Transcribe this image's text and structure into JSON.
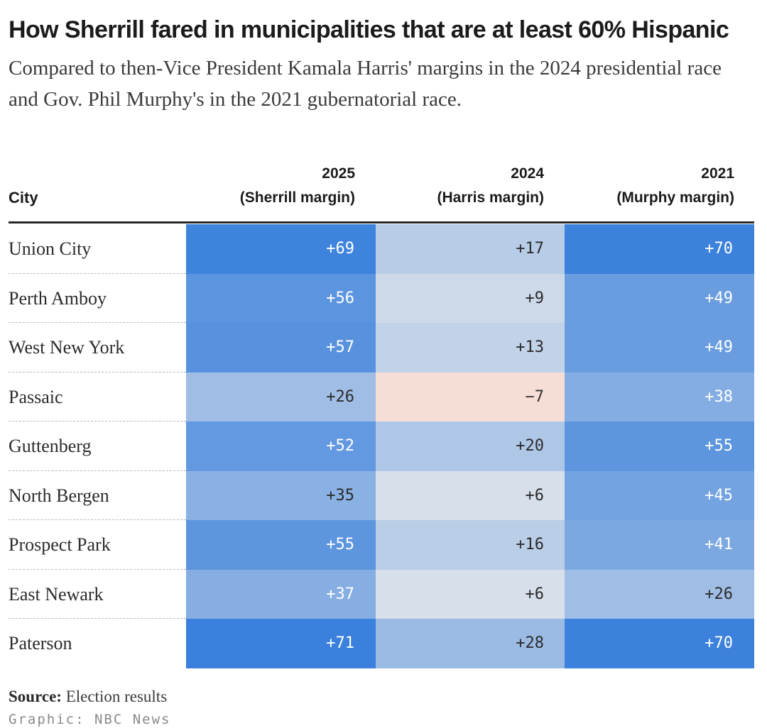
{
  "chart_data": {
    "type": "table",
    "title": "How Sherrill fared in municipalities that are at least 60% Hispanic",
    "subtitle": "Compared to then-Vice President Kamala Harris' margins in the 2024 presidential race and Gov. Phil Murphy's in the 2021 gubernatorial race.",
    "columns": {
      "city": "City",
      "c2025": {
        "year": "2025",
        "label": "(Sherrill margin)"
      },
      "c2024": {
        "year": "2024",
        "label": "(Harris margin)"
      },
      "c2021": {
        "year": "2021",
        "label": "(Murphy margin)"
      }
    },
    "rows": [
      {
        "city": "Union City",
        "v2025": 69,
        "v2024": 17,
        "v2021": 70,
        "t2025": "+69",
        "t2024": "+17",
        "t2021": "+70"
      },
      {
        "city": "Perth Amboy",
        "v2025": 56,
        "v2024": 9,
        "v2021": 49,
        "t2025": "+56",
        "t2024": "+9",
        "t2021": "+49"
      },
      {
        "city": "West New York",
        "v2025": 57,
        "v2024": 13,
        "v2021": 49,
        "t2025": "+57",
        "t2024": "+13",
        "t2021": "+49"
      },
      {
        "city": "Passaic",
        "v2025": 26,
        "v2024": -7,
        "v2021": 38,
        "t2025": "+26",
        "t2024": "−7",
        "t2021": "+38"
      },
      {
        "city": "Guttenberg",
        "v2025": 52,
        "v2024": 20,
        "v2021": 55,
        "t2025": "+52",
        "t2024": "+20",
        "t2021": "+55"
      },
      {
        "city": "North Bergen",
        "v2025": 35,
        "v2024": 6,
        "v2021": 45,
        "t2025": "+35",
        "t2024": "+6",
        "t2021": "+45"
      },
      {
        "city": "Prospect Park",
        "v2025": 55,
        "v2024": 16,
        "v2021": 41,
        "t2025": "+55",
        "t2024": "+16",
        "t2021": "+41"
      },
      {
        "city": "East Newark",
        "v2025": 37,
        "v2024": 6,
        "v2021": 26,
        "t2025": "+37",
        "t2024": "+6",
        "t2021": "+26"
      },
      {
        "city": "Paterson",
        "v2025": 71,
        "v2024": 28,
        "v2021": 70,
        "t2025": "+71",
        "t2024": "+28",
        "t2021": "+70"
      }
    ],
    "color_scale": {
      "positive_max": "#3a80dc",
      "neutral": "#ececec",
      "negative": "#f6ddd5",
      "max_value": 71
    }
  },
  "source": {
    "label": "Source:",
    "text": "Election results"
  },
  "credit": "Graphic: NBC News"
}
